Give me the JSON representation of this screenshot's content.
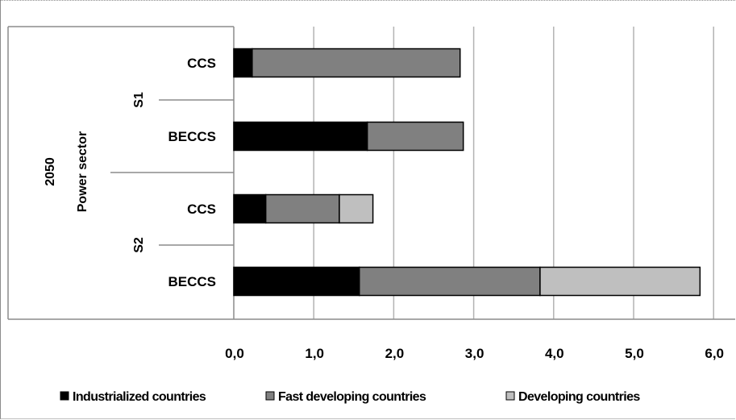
{
  "chart_data": {
    "type": "bar",
    "orientation": "horizontal",
    "stacked": true,
    "group_label": "2050",
    "sector_label": "Power sector",
    "scenario_labels": [
      "S1",
      "S2"
    ],
    "categories": [
      "CCS",
      "BECCS",
      "CCS",
      "BECCS"
    ],
    "category_scenarios": [
      "S1",
      "S1",
      "S2",
      "S2"
    ],
    "series": [
      {
        "name": "Industrialized countries",
        "color": "#000000",
        "values": [
          0.23,
          1.67,
          0.4,
          1.57
        ]
      },
      {
        "name": "Fast developing countries",
        "color": "#808080",
        "values": [
          2.6,
          1.2,
          0.92,
          2.26
        ]
      },
      {
        "name": "Developing countries",
        "color": "#bfbfbf",
        "values": [
          0.0,
          0.0,
          0.42,
          2.0
        ]
      }
    ],
    "xlim": [
      0,
      6
    ],
    "x_ticks": [
      "0,0",
      "1,0",
      "2,0",
      "3,0",
      "4,0",
      "5,0",
      "6,0"
    ],
    "grid": true,
    "legend_position": "bottom"
  }
}
